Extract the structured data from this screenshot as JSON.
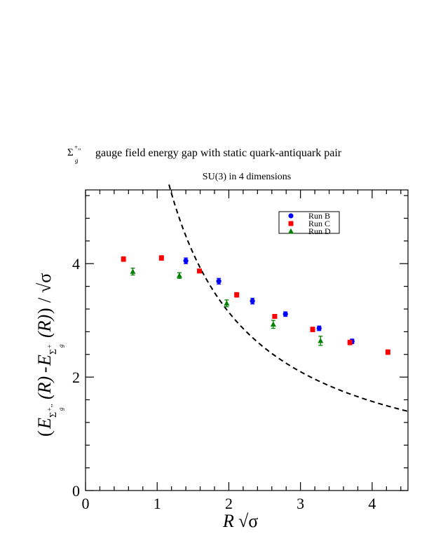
{
  "chart_data": {
    "type": "scatter",
    "title_prefix": "Σ",
    "title_sup": "+,,",
    "title_sub": "g",
    "title": "gauge field energy gap with static quark-antiquark pair",
    "subtitle": "SU(3) in 4 dimensions",
    "xlabel": "R √σ",
    "ylabel": "(E_{Σg+''}(R) - E_{Σg+}(R)) / √σ",
    "xlim": [
      0,
      4.5
    ],
    "ylim": [
      0,
      5.3
    ],
    "x_ticks": [
      0,
      1,
      2,
      3,
      4
    ],
    "y_ticks": [
      0,
      2,
      4
    ],
    "grid": false,
    "legend_position": "top-right",
    "series": [
      {
        "name": "Run B",
        "color": "#0000ff",
        "marker": "circle",
        "points": [
          {
            "x": 1.4,
            "y": 4.05,
            "err": 0.05
          },
          {
            "x": 1.86,
            "y": 3.69,
            "err": 0.05
          },
          {
            "x": 2.33,
            "y": 3.34,
            "err": 0.05
          },
          {
            "x": 2.79,
            "y": 3.11,
            "err": 0.04
          },
          {
            "x": 3.26,
            "y": 2.86,
            "err": 0.04
          },
          {
            "x": 3.72,
            "y": 2.63,
            "err": 0.04
          }
        ]
      },
      {
        "name": "Run C",
        "color": "#ff0000",
        "marker": "square",
        "points": [
          {
            "x": 0.53,
            "y": 4.08,
            "err": 0.04
          },
          {
            "x": 1.06,
            "y": 4.1,
            "err": 0.04
          },
          {
            "x": 1.59,
            "y": 3.87,
            "err": 0.03
          },
          {
            "x": 2.11,
            "y": 3.45,
            "err": 0.04
          },
          {
            "x": 2.64,
            "y": 3.07,
            "err": 0.03
          },
          {
            "x": 3.17,
            "y": 2.84,
            "err": 0.04
          },
          {
            "x": 3.69,
            "y": 2.61,
            "err": 0.04
          },
          {
            "x": 4.22,
            "y": 2.44,
            "err": 0.04
          }
        ]
      },
      {
        "name": "Run D",
        "color": "#008000",
        "marker": "triangle",
        "points": [
          {
            "x": 0.66,
            "y": 3.86,
            "err": 0.06
          },
          {
            "x": 1.31,
            "y": 3.79,
            "err": 0.05
          },
          {
            "x": 1.97,
            "y": 3.3,
            "err": 0.06
          },
          {
            "x": 2.62,
            "y": 2.93,
            "err": 0.07
          },
          {
            "x": 3.28,
            "y": 2.64,
            "err": 0.08
          }
        ]
      }
    ],
    "reference_curve": {
      "style": "dashed",
      "color": "#000000",
      "formula": "2*pi/x",
      "x_range": [
        1.165,
        4.5
      ]
    }
  }
}
